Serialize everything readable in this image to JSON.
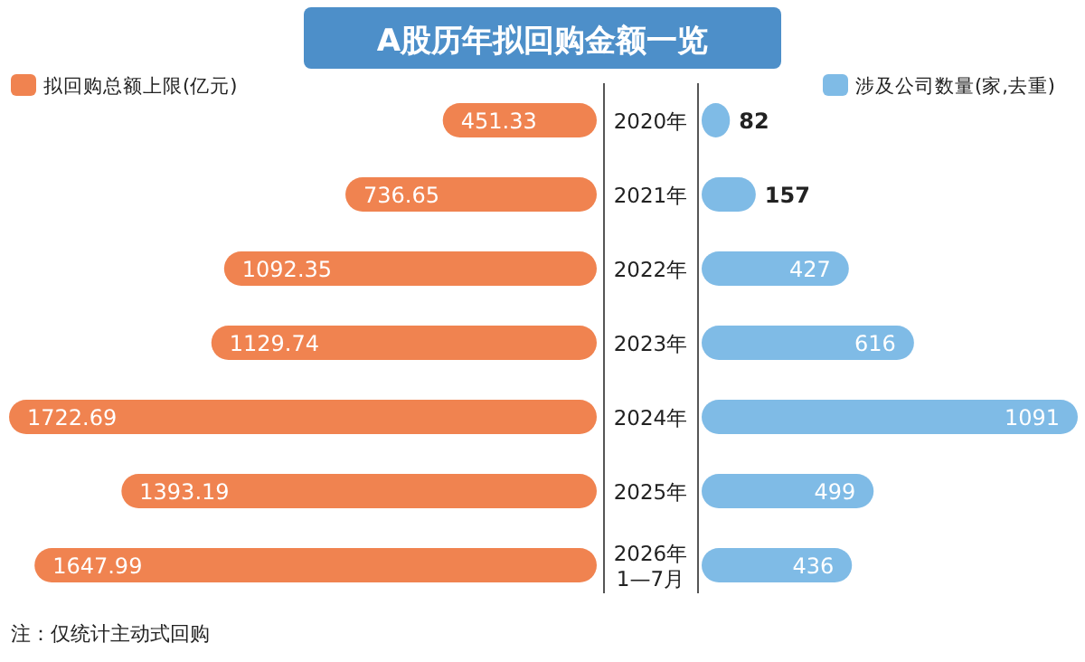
{
  "chart_data": [
    {
      "type": "bar",
      "orientation": "horizontal",
      "title": "A股历年拟回购金额一览",
      "categories": [
        "2020年",
        "2021年",
        "2022年",
        "2023年",
        "2024年",
        "2025年",
        "2026年\n1—7月"
      ],
      "data_labels": true,
      "legend": "top left",
      "annotations": [
        "注：仅统计主动式回购"
      ],
      "series": [
        {
          "name": "拟回购总额上限(亿元)",
          "color": "#f08350",
          "values": [
            451.33,
            736.65,
            1092.35,
            1129.74,
            1722.69,
            1393.19,
            1647.99
          ]
        }
      ]
    },
    {
      "type": "bar",
      "orientation": "horizontal",
      "categories": [
        null,
        null,
        null,
        null,
        null,
        null,
        null
      ],
      "data_labels": true,
      "legend": "top right",
      "series": [
        {
          "name": "涉及公司数量(家,去重)",
          "color": "#7fbbe6",
          "values": [
            82,
            157,
            427,
            616,
            1091,
            499,
            436
          ]
        }
      ]
    }
  ]
}
